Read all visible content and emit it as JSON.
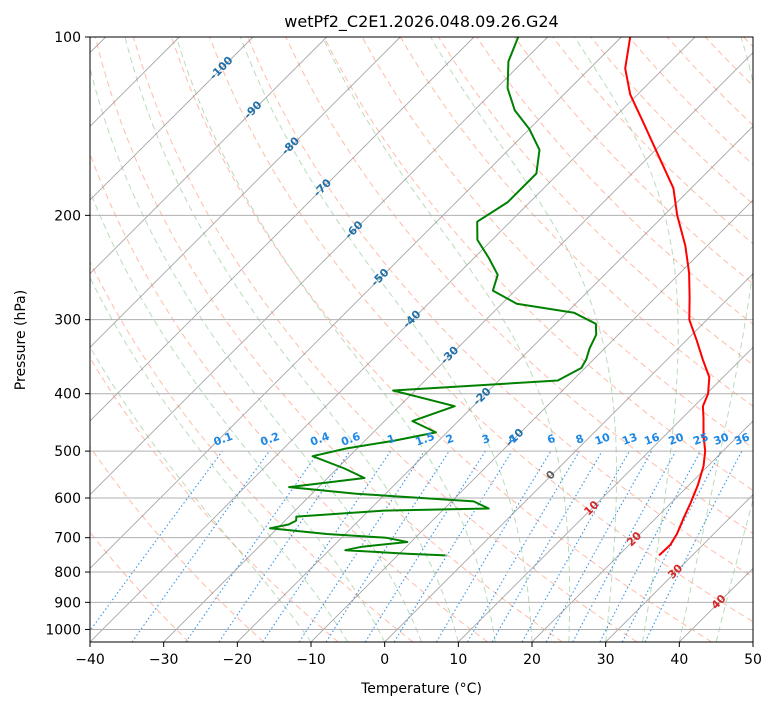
{
  "chart_data": {
    "type": "line",
    "title": "wetPf2_C2E1.2026.048.09.26.G24",
    "xlabel": "Temperature (°C)",
    "ylabel": "Pressure (hPa)",
    "xlim": [
      -40,
      50
    ],
    "ylim": [
      1050,
      100
    ],
    "y_scale": "log",
    "skew": true,
    "grid": true,
    "x_ticks": [
      -40,
      -30,
      -20,
      -10,
      0,
      10,
      20,
      30,
      40,
      50
    ],
    "y_ticks": [
      100,
      200,
      300,
      400,
      500,
      600,
      700,
      800,
      900,
      1000
    ],
    "series": [
      {
        "name": "",
        "role": "temperature",
        "color": "#ff0000",
        "points": [
          {
            "p": 750,
            "t": 25.5
          },
          {
            "p": 720,
            "t": 25.6
          },
          {
            "p": 690,
            "t": 25.0
          },
          {
            "p": 650,
            "t": 23.8
          },
          {
            "p": 610,
            "t": 22.6
          },
          {
            "p": 570,
            "t": 21.2
          },
          {
            "p": 530,
            "t": 19.4
          },
          {
            "p": 500,
            "t": 17.6
          },
          {
            "p": 470,
            "t": 15.2
          },
          {
            "p": 440,
            "t": 12.9
          },
          {
            "p": 420,
            "t": 11.2
          },
          {
            "p": 400,
            "t": 10.2
          },
          {
            "p": 375,
            "t": 8.1
          },
          {
            "p": 350,
            "t": 4.8
          },
          {
            "p": 325,
            "t": 1.4
          },
          {
            "p": 300,
            "t": -2.4
          },
          {
            "p": 275,
            "t": -5.4
          },
          {
            "p": 250,
            "t": -8.8
          },
          {
            "p": 225,
            "t": -13.0
          },
          {
            "p": 200,
            "t": -18.2
          },
          {
            "p": 180,
            "t": -22.4
          },
          {
            "p": 160,
            "t": -28.4
          },
          {
            "p": 140,
            "t": -35.2
          },
          {
            "p": 125,
            "t": -41.0
          },
          {
            "p": 113,
            "t": -45.2
          },
          {
            "p": 100,
            "t": -48.8
          }
        ]
      },
      {
        "name": "",
        "role": "dewpoint",
        "color": "#008000",
        "points": [
          {
            "p": 750,
            "t": -3.5
          },
          {
            "p": 745,
            "t": -9.0
          },
          {
            "p": 735,
            "t": -17.8
          },
          {
            "p": 725,
            "t": -16.0
          },
          {
            "p": 712,
            "t": -10.5
          },
          {
            "p": 700,
            "t": -14.0
          },
          {
            "p": 690,
            "t": -22.5
          },
          {
            "p": 675,
            "t": -31.0
          },
          {
            "p": 665,
            "t": -29.0
          },
          {
            "p": 655,
            "t": -28.5
          },
          {
            "p": 645,
            "t": -29.0
          },
          {
            "p": 630,
            "t": -18.0
          },
          {
            "p": 625,
            "t": -4.0
          },
          {
            "p": 608,
            "t": -7.0
          },
          {
            "p": 590,
            "t": -24.0
          },
          {
            "p": 575,
            "t": -34.0
          },
          {
            "p": 555,
            "t": -25.0
          },
          {
            "p": 535,
            "t": -29.0
          },
          {
            "p": 510,
            "t": -35.0
          },
          {
            "p": 495,
            "t": -31.5
          },
          {
            "p": 480,
            "t": -26.0
          },
          {
            "p": 465,
            "t": -21.5
          },
          {
            "p": 445,
            "t": -26.2
          },
          {
            "p": 420,
            "t": -22.5
          },
          {
            "p": 395,
            "t": -33.0
          },
          {
            "p": 380,
            "t": -12.0
          },
          {
            "p": 362,
            "t": -10.5
          },
          {
            "p": 350,
            "t": -11.0
          },
          {
            "p": 336,
            "t": -12.0
          },
          {
            "p": 318,
            "t": -13.0
          },
          {
            "p": 305,
            "t": -14.5
          },
          {
            "p": 292,
            "t": -19.0
          },
          {
            "p": 282,
            "t": -28.0
          },
          {
            "p": 268,
            "t": -33.0
          },
          {
            "p": 252,
            "t": -34.5
          },
          {
            "p": 236,
            "t": -38.0
          },
          {
            "p": 220,
            "t": -42.0
          },
          {
            "p": 205,
            "t": -44.5
          },
          {
            "p": 190,
            "t": -43.0
          },
          {
            "p": 170,
            "t": -43.0
          },
          {
            "p": 155,
            "t": -45.8
          },
          {
            "p": 143,
            "t": -50.0
          },
          {
            "p": 133,
            "t": -54.5
          },
          {
            "p": 122,
            "t": -58.5
          },
          {
            "p": 110,
            "t": -62.0
          },
          {
            "p": 100,
            "t": -64.0
          }
        ]
      }
    ],
    "isotherm_labels": [
      {
        "text": "-100",
        "t": -100
      },
      {
        "text": "-90",
        "t": -90
      },
      {
        "text": "-80",
        "t": -80
      },
      {
        "text": "-70",
        "t": -70
      },
      {
        "text": "-60",
        "t": -60
      },
      {
        "text": "-50",
        "t": -50
      },
      {
        "text": "-40",
        "t": -40
      },
      {
        "text": "-30",
        "t": -30
      },
      {
        "text": "-20",
        "t": -20
      },
      {
        "text": "-10",
        "t": -10
      },
      {
        "text": "0",
        "t": 0
      },
      {
        "text": "10",
        "t": 10
      },
      {
        "text": "20",
        "t": 20
      },
      {
        "text": "30",
        "t": 30
      },
      {
        "text": "40",
        "t": 40
      }
    ],
    "mixing_ratio_labels": [
      "0.1",
      "0.2",
      "0.4",
      "0.6",
      "1",
      "1.5",
      "2",
      "3",
      "4",
      "6",
      "8",
      "10",
      "13",
      "16",
      "20",
      "25",
      "30",
      "36"
    ],
    "colors": {
      "temperature": "#ff0000",
      "dewpoint": "#008000",
      "isotherm": "#808080",
      "dry_adiabat": "#ff9070",
      "moist_adiabat": "#7fbf7f",
      "mixing_ratio": "#1e88e5",
      "label_cold": "#1f6fa8",
      "label_warm": "#d62728"
    }
  }
}
